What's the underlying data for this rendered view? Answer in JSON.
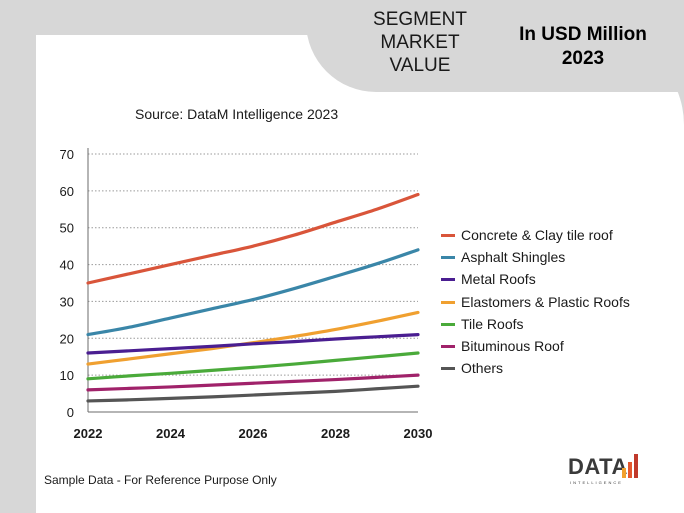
{
  "header": {
    "segment_line1": "SEGMENT",
    "segment_line2": "MARKET",
    "segment_line3": "VALUE",
    "unit_line1": "In USD Million",
    "unit_line2": "2023"
  },
  "source": "Source: DataM Intelligence  2023",
  "footer_note": "Sample Data - For Reference Purpose Only",
  "logo": {
    "word": "DATA",
    "sub": "INTELLIGENCE",
    "bar_colors": [
      "#f2a12e",
      "#e4572e",
      "#c0392b"
    ]
  },
  "chart_data": {
    "type": "line",
    "x": [
      2022,
      2023,
      2024,
      2025,
      2026,
      2027,
      2028,
      2029,
      2030
    ],
    "xticks": [
      2022,
      2024,
      2026,
      2028,
      2030
    ],
    "yticks": [
      0,
      10,
      20,
      30,
      40,
      50,
      60,
      70
    ],
    "xlim": [
      2022,
      2030
    ],
    "ylim": [
      0,
      70
    ],
    "grid": "horizontal-dotted",
    "legend_position": "right",
    "series": [
      {
        "name": "Concrete & Clay tile roof",
        "color": "#d9553a",
        "values": [
          35,
          37.5,
          40,
          42.5,
          45,
          48,
          51.5,
          55,
          59
        ]
      },
      {
        "name": "Asphalt Shingles",
        "color": "#3a86a8",
        "values": [
          21,
          23,
          25.5,
          28,
          30.5,
          33.5,
          36.8,
          40.2,
          44
        ]
      },
      {
        "name": "Metal Roofs",
        "color": "#4a1e91",
        "values": [
          16,
          16.6,
          17.2,
          17.8,
          18.5,
          19.1,
          19.8,
          20.4,
          21
        ]
      },
      {
        "name": "Elastomers & Plastic Roofs",
        "color": "#f0a030",
        "values": [
          13,
          14.4,
          15.8,
          17.2,
          18.8,
          20.5,
          22.4,
          24.6,
          27
        ]
      },
      {
        "name": "Tile Roofs",
        "color": "#4aaa3a",
        "values": [
          9,
          9.8,
          10.5,
          11.3,
          12.1,
          13,
          14,
          15,
          16
        ]
      },
      {
        "name": "Bituminous Roof",
        "color": "#a0226a",
        "values": [
          6,
          6.4,
          6.8,
          7.3,
          7.8,
          8.3,
          8.8,
          9.4,
          10
        ]
      },
      {
        "name": "Others",
        "color": "#555555",
        "values": [
          3,
          3.3,
          3.7,
          4.1,
          4.6,
          5.1,
          5.6,
          6.3,
          7
        ]
      }
    ]
  }
}
